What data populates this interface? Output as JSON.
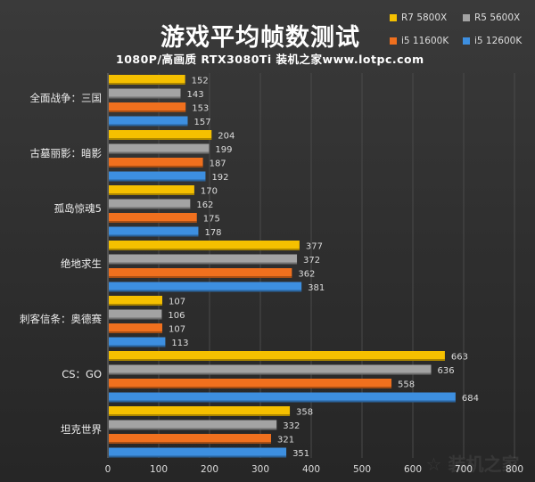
{
  "chart_data": {
    "type": "bar",
    "orientation": "horizontal",
    "title": "游戏平均帧数测试",
    "subtitle": "1080P/高画质 RTX3080Ti 装机之家www.lotpc.com",
    "categories": [
      "全面战争：三国",
      "古墓丽影：暗影",
      "孤岛惊魂5",
      "绝地求生",
      "刺客信条：奥德赛",
      "CS：GO",
      "坦克世界"
    ],
    "series": [
      {
        "name": "R7 5800X",
        "color": "#f5c000",
        "values": [
          152,
          204,
          170,
          377,
          107,
          663,
          358
        ]
      },
      {
        "name": "R5 5600X",
        "color": "#a3a3a3",
        "values": [
          143,
          199,
          162,
          372,
          106,
          636,
          332
        ]
      },
      {
        "name": "i5 11600K",
        "color": "#f0701e",
        "values": [
          153,
          187,
          175,
          362,
          107,
          558,
          321
        ]
      },
      {
        "name": "i5 12600K",
        "color": "#3d8fe0",
        "values": [
          157,
          192,
          178,
          381,
          113,
          684,
          351
        ]
      }
    ],
    "xlim": [
      0,
      800
    ],
    "xticks": [
      0,
      100,
      200,
      300,
      400,
      500,
      600,
      700,
      800
    ],
    "grid": true,
    "legend_position": "top-right",
    "watermark": "装机之家"
  }
}
